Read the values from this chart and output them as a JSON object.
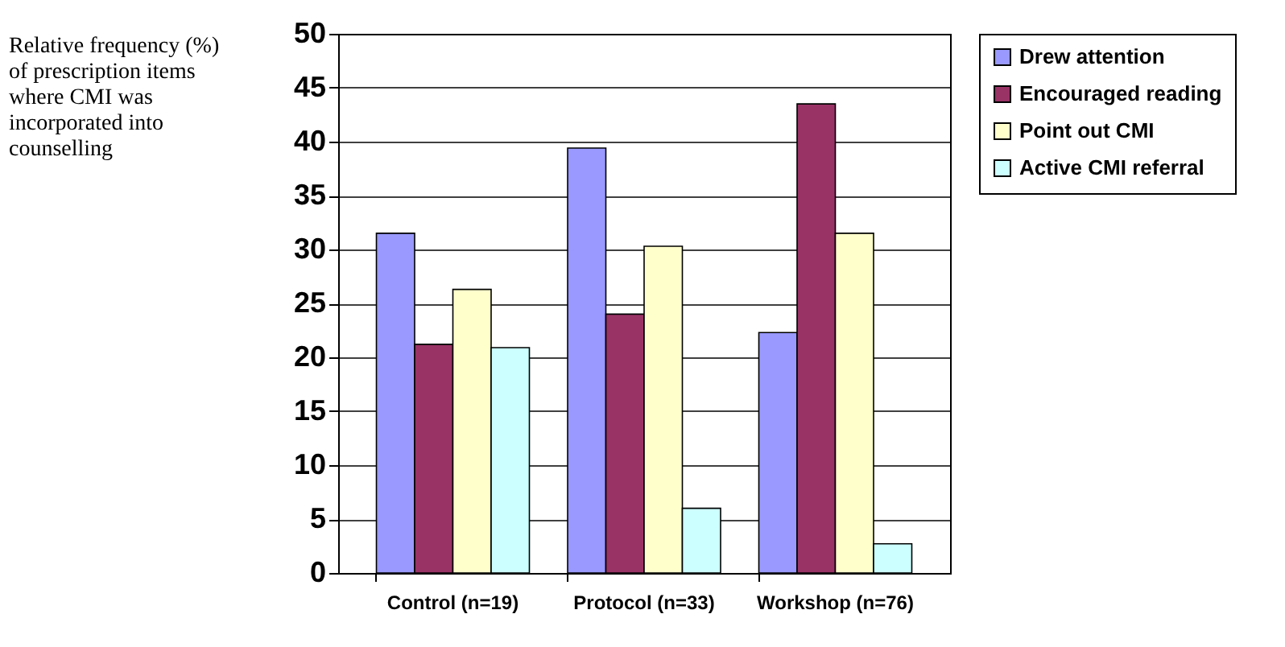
{
  "chart_data": {
    "type": "bar",
    "ylabel": "Relative frequency (%) of prescription items where CMI was incorporated into counselling",
    "categories": [
      "Control (n=19)",
      "Protocol (n=33)",
      "Workshop (n=76)"
    ],
    "series": [
      {
        "name": "Drew attention",
        "color": "#9999ff",
        "values": [
          31.5,
          39.4,
          22.3
        ]
      },
      {
        "name": "Encouraged reading",
        "color": "#993366",
        "values": [
          21.2,
          24.0,
          43.5
        ]
      },
      {
        "name": "Point out CMI",
        "color": "#ffffcc",
        "values": [
          26.3,
          30.3,
          31.5
        ]
      },
      {
        "name": "Active CMI referral",
        "color": "#ccffff",
        "values": [
          20.9,
          6.0,
          2.7
        ]
      }
    ],
    "ylim": [
      0,
      50
    ],
    "yticks": [
      0,
      5,
      10,
      15,
      20,
      25,
      30,
      35,
      40,
      45,
      50
    ],
    "grid": "y",
    "legend": "right"
  }
}
